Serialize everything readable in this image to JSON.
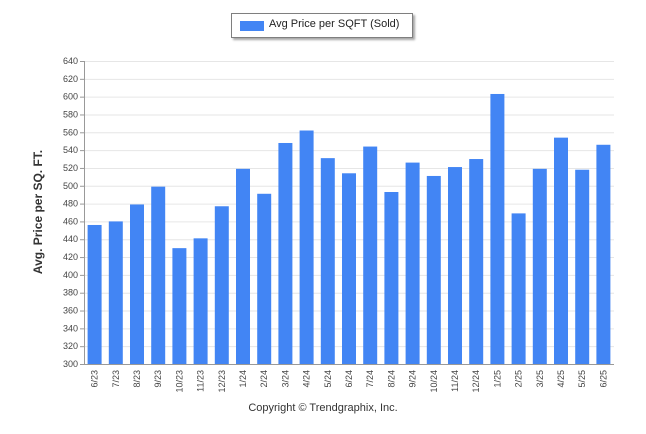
{
  "chart_data": {
    "type": "bar",
    "ylabel": "Avg. Price per SQ. FT.",
    "ylim": [
      300,
      640
    ],
    "yticks": [
      300,
      320,
      340,
      360,
      380,
      400,
      420,
      440,
      460,
      480,
      500,
      520,
      540,
      560,
      580,
      600,
      620,
      640
    ],
    "categories": [
      "6/23",
      "7/23",
      "8/23",
      "9/23",
      "10/23",
      "11/23",
      "12/23",
      "1/24",
      "2/24",
      "3/24",
      "4/24",
      "5/24",
      "6/24",
      "7/24",
      "8/24",
      "9/24",
      "10/24",
      "11/24",
      "12/24",
      "1/25",
      "2/25",
      "3/25",
      "4/25",
      "5/25",
      "6/25"
    ],
    "series": [
      {
        "name": "Avg Price per SQFT (Sold)",
        "color": "#4285f4",
        "values": [
          456,
          460,
          479,
          499,
          430,
          441,
          477,
          519,
          491,
          548,
          562,
          531,
          514,
          544,
          493,
          526,
          511,
          521,
          530,
          603,
          469,
          519,
          554,
          518,
          546
        ]
      }
    ],
    "legend": "top-center",
    "grid": true
  },
  "footer": {
    "copyright": "Copyright © Trendgraphix, Inc."
  }
}
